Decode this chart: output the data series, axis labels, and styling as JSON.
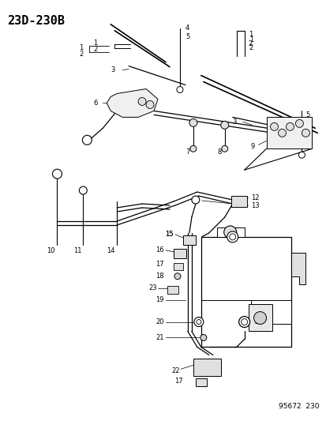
{
  "title": "23D-230B",
  "footer": "95672  230",
  "bg_color": "#ffffff",
  "line_color": "#000000",
  "title_fontsize": 11,
  "footer_fontsize": 6.5,
  "fig_width": 4.14,
  "fig_height": 5.33,
  "dpi": 100
}
